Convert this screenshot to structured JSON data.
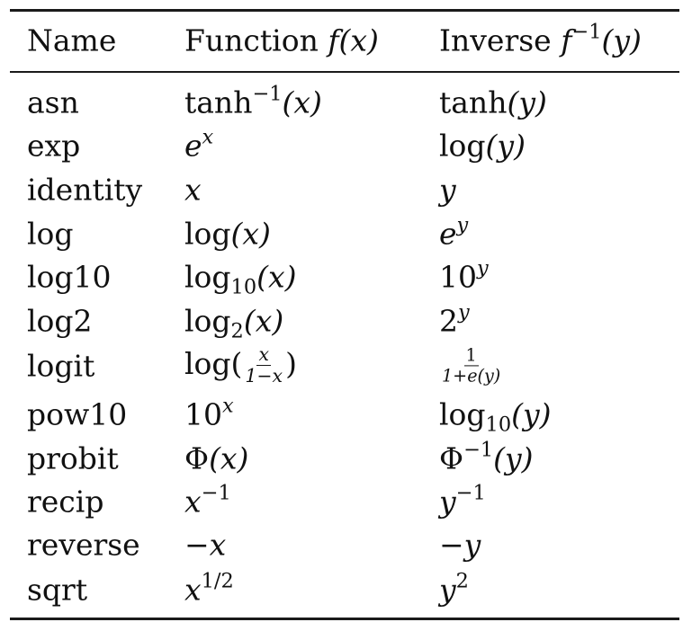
{
  "table": {
    "headers": {
      "name": "Name",
      "function_word": "Function ",
      "function_math": "f(x)",
      "inverse_word": "Inverse ",
      "inverse_f": "f",
      "inverse_exp": "−1",
      "inverse_arg": "(y)"
    },
    "rows": [
      {
        "name": "asn",
        "function": {
          "a": "tanh",
          "sup": "−1",
          "b": "(x)"
        },
        "inverse": {
          "a": "tanh(y)"
        }
      },
      {
        "name": "exp",
        "function": {
          "a": "e",
          "sup": "x"
        },
        "inverse": {
          "a": "log(y)"
        }
      },
      {
        "name": "identity",
        "function": {
          "a": "x"
        },
        "inverse": {
          "a": "y"
        }
      },
      {
        "name": "log",
        "function": {
          "a": "log(x)"
        },
        "inverse": {
          "a": "e",
          "sup": "y"
        }
      },
      {
        "name": "log10",
        "function": {
          "a": "log",
          "sub": "10",
          "b": "(x)"
        },
        "inverse": {
          "a": "10",
          "sup": "y"
        }
      },
      {
        "name": "log2",
        "function": {
          "a": "log",
          "sub": "2",
          "b": "(x)"
        },
        "inverse": {
          "a": "2",
          "sup": "y"
        }
      },
      {
        "name": "logit",
        "function": {
          "a": "log(",
          "num": "x",
          "den": "1−x",
          "b": ")"
        },
        "inverse": {
          "num": "1",
          "den": "1+e(y)"
        }
      },
      {
        "name": "pow10",
        "function": {
          "a": "10",
          "sup": "x"
        },
        "inverse": {
          "a": "log",
          "sub": "10",
          "b": "(y)"
        }
      },
      {
        "name": "probit",
        "function": {
          "a": "Φ(x)"
        },
        "inverse": {
          "a": "Φ",
          "sup": "−1",
          "b": "(y)"
        }
      },
      {
        "name": "recip",
        "function": {
          "a": "x",
          "sup": "−1"
        },
        "inverse": {
          "a": "y",
          "sup": "−1"
        }
      },
      {
        "name": "reverse",
        "function": {
          "a": "−x"
        },
        "inverse": {
          "a": "−y"
        }
      },
      {
        "name": "sqrt",
        "function": {
          "a": "x",
          "sup": "1/2"
        },
        "inverse": {
          "a": "y",
          "sup": "2"
        }
      }
    ]
  }
}
